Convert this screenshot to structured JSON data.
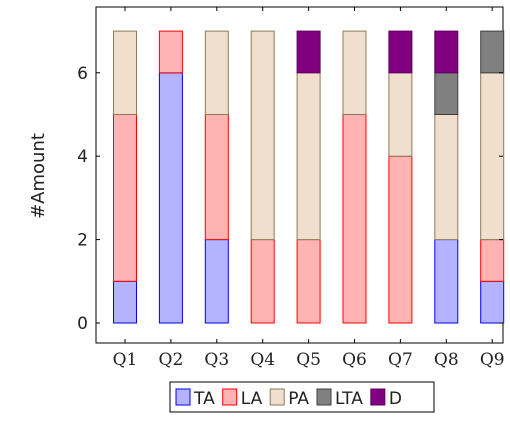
{
  "chart_data": {
    "type": "bar",
    "stacked": true,
    "title": "",
    "xlabel": "",
    "ylabel": "#Amount",
    "ylim": [
      -0.5,
      7.5
    ],
    "yticks": [
      0,
      2,
      4,
      6
    ],
    "grid": false,
    "legend_position": "bottom",
    "categories": [
      "Q1",
      "Q2",
      "Q3",
      "Q4",
      "Q5",
      "Q6",
      "Q7",
      "Q8",
      "Q9"
    ],
    "series": [
      {
        "name": "TA",
        "fill": "#b3b3ff",
        "stroke": "#0000ff",
        "values": [
          1,
          6,
          2,
          0,
          0,
          0,
          0,
          2,
          1
        ]
      },
      {
        "name": "LA",
        "fill": "#ffb3b3",
        "stroke": "#ff0000",
        "values": [
          4,
          1,
          3,
          2,
          2,
          5,
          4,
          0,
          1
        ]
      },
      {
        "name": "PA",
        "fill": "#efdfcc",
        "stroke": "#8c7a5b",
        "values": [
          2,
          0,
          2,
          5,
          4,
          2,
          2,
          3,
          4
        ]
      },
      {
        "name": "LTA",
        "fill": "#808080",
        "stroke": "#404040",
        "values": [
          0,
          0,
          0,
          0,
          0,
          0,
          0,
          1,
          1
        ]
      },
      {
        "name": "D",
        "fill": "#800080",
        "stroke": "#600060",
        "values": [
          0,
          0,
          0,
          0,
          1,
          0,
          1,
          1,
          0
        ]
      }
    ]
  }
}
